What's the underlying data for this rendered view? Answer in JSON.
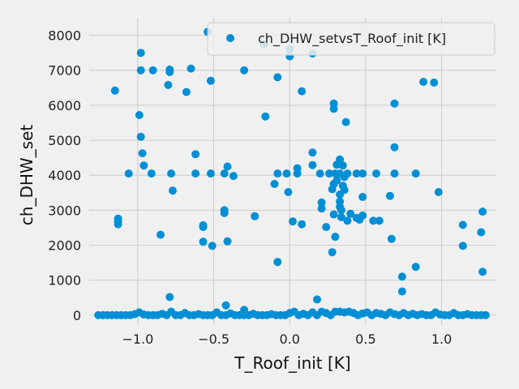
{
  "chart_data": {
    "type": "scatter",
    "title": "",
    "xlabel": "T_Roof_init [K]",
    "ylabel": "ch_DHW_set",
    "xlim": [
      -1.32,
      1.36
    ],
    "ylim": [
      -280,
      8500
    ],
    "xticks": [
      -1.0,
      -0.5,
      0.0,
      0.5,
      1.0
    ],
    "xtick_labels": [
      "−1.0",
      "−0.5",
      "0.0",
      "0.5",
      "1.0"
    ],
    "yticks": [
      0,
      1000,
      2000,
      3000,
      4000,
      5000,
      6000,
      7000,
      8000
    ],
    "ytick_labels": [
      "0",
      "1000",
      "2000",
      "3000",
      "4000",
      "5000",
      "6000",
      "7000",
      "8000"
    ],
    "grid": true,
    "legend_position": "top-right",
    "series": [
      {
        "name": "ch_DHW_setvsT_Roof_init [K]",
        "color": "#008fd5",
        "points": [
          [
            -0.54,
            8100
          ],
          [
            -0.17,
            7750
          ],
          [
            0.0,
            7600
          ],
          [
            0.15,
            7480
          ],
          [
            -0.98,
            7500
          ],
          [
            0.0,
            7400
          ],
          [
            -0.65,
            7050
          ],
          [
            -0.79,
            7020
          ],
          [
            -0.98,
            7000
          ],
          [
            -0.9,
            7000
          ],
          [
            -0.3,
            7000
          ],
          [
            -0.79,
            6950
          ],
          [
            -0.08,
            6800
          ],
          [
            -0.52,
            6700
          ],
          [
            0.88,
            6670
          ],
          [
            0.95,
            6650
          ],
          [
            -0.8,
            6580
          ],
          [
            -1.15,
            6420
          ],
          [
            0.08,
            6400
          ],
          [
            -0.68,
            6380
          ],
          [
            0.29,
            6050
          ],
          [
            0.69,
            6050
          ],
          [
            0.29,
            5900
          ],
          [
            -0.99,
            5720
          ],
          [
            -0.16,
            5680
          ],
          [
            0.37,
            5520
          ],
          [
            -0.98,
            5100
          ],
          [
            0.69,
            4800
          ],
          [
            0.15,
            4650
          ],
          [
            -0.97,
            4630
          ],
          [
            -0.62,
            4600
          ],
          [
            0.33,
            4450
          ],
          [
            0.31,
            4300
          ],
          [
            0.35,
            4280
          ],
          [
            -0.96,
            4280
          ],
          [
            -0.41,
            4250
          ],
          [
            0.15,
            4290
          ],
          [
            0.05,
            4200
          ],
          [
            -1.06,
            4050
          ],
          [
            -0.91,
            4050
          ],
          [
            -0.78,
            4050
          ],
          [
            -0.62,
            4050
          ],
          [
            -0.52,
            4050
          ],
          [
            -0.43,
            4050
          ],
          [
            -0.08,
            4050
          ],
          [
            -0.02,
            4050
          ],
          [
            0.05,
            4050
          ],
          [
            0.2,
            4050
          ],
          [
            0.26,
            4050
          ],
          [
            0.3,
            4050
          ],
          [
            0.33,
            4050
          ],
          [
            0.38,
            4050
          ],
          [
            0.44,
            4050
          ],
          [
            0.48,
            4050
          ],
          [
            0.57,
            4050
          ],
          [
            0.69,
            4050
          ],
          [
            0.83,
            4050
          ],
          [
            -0.37,
            3980
          ],
          [
            0.36,
            3950
          ],
          [
            0.31,
            3850
          ],
          [
            -0.1,
            3750
          ],
          [
            0.29,
            3750
          ],
          [
            0.35,
            3700
          ],
          [
            0.28,
            3600
          ],
          [
            0.36,
            3580
          ],
          [
            -0.77,
            3560
          ],
          [
            0.98,
            3520
          ],
          [
            -0.01,
            3520
          ],
          [
            0.33,
            3450
          ],
          [
            0.66,
            3410
          ],
          [
            0.48,
            3380
          ],
          [
            0.33,
            3250
          ],
          [
            0.21,
            3220
          ],
          [
            0.33,
            3100
          ],
          [
            0.34,
            3000
          ],
          [
            0.21,
            3050
          ],
          [
            -0.43,
            3000
          ],
          [
            1.27,
            2960
          ],
          [
            -0.43,
            2920
          ],
          [
            0.4,
            2900
          ],
          [
            0.29,
            2880
          ],
          [
            0.48,
            2850
          ],
          [
            -0.23,
            2830
          ],
          [
            0.34,
            2800
          ],
          [
            0.44,
            2780
          ],
          [
            0.46,
            2730
          ],
          [
            0.38,
            2700
          ],
          [
            -1.13,
            2760
          ],
          [
            0.55,
            2700
          ],
          [
            0.59,
            2700
          ],
          [
            0.02,
            2680
          ],
          [
            -1.13,
            2680
          ],
          [
            -1.13,
            2600
          ],
          [
            0.08,
            2600
          ],
          [
            1.14,
            2580
          ],
          [
            -0.57,
            2570
          ],
          [
            -0.57,
            2520
          ],
          [
            0.24,
            2520
          ],
          [
            1.26,
            2370
          ],
          [
            -0.85,
            2300
          ],
          [
            0.3,
            2240
          ],
          [
            0.67,
            2180
          ],
          [
            -0.41,
            2110
          ],
          [
            -0.57,
            2100
          ],
          [
            -0.51,
            1980
          ],
          [
            1.14,
            1980
          ],
          [
            0.28,
            1800
          ],
          [
            -0.08,
            1520
          ],
          [
            0.83,
            1380
          ],
          [
            1.27,
            1240
          ],
          [
            0.74,
            1100
          ],
          [
            0.74,
            680
          ],
          [
            -0.79,
            520
          ],
          [
            0.18,
            450
          ],
          [
            -0.42,
            280
          ],
          [
            -0.3,
            150
          ],
          [
            -1.26,
            0
          ],
          [
            -1.23,
            0
          ],
          [
            -1.2,
            0
          ],
          [
            -1.17,
            0
          ],
          [
            -1.14,
            0
          ],
          [
            -1.11,
            0
          ],
          [
            -1.08,
            0
          ],
          [
            -1.05,
            0
          ],
          [
            -1.02,
            30
          ],
          [
            -0.99,
            80
          ],
          [
            -0.96,
            20
          ],
          [
            -0.93,
            0
          ],
          [
            -0.9,
            0
          ],
          [
            -0.87,
            0
          ],
          [
            -0.84,
            40
          ],
          [
            -0.81,
            0
          ],
          [
            -0.78,
            100
          ],
          [
            -0.75,
            0
          ],
          [
            -0.72,
            0
          ],
          [
            -0.69,
            60
          ],
          [
            -0.66,
            0
          ],
          [
            -0.63,
            0
          ],
          [
            -0.6,
            30
          ],
          [
            -0.57,
            0
          ],
          [
            -0.54,
            0
          ],
          [
            -0.51,
            0
          ],
          [
            -0.48,
            80
          ],
          [
            -0.45,
            0
          ],
          [
            -0.42,
            0
          ],
          [
            -0.39,
            50
          ],
          [
            -0.36,
            0
          ],
          [
            -0.33,
            0
          ],
          [
            -0.3,
            0
          ],
          [
            -0.27,
            0
          ],
          [
            -0.24,
            40
          ],
          [
            -0.21,
            0
          ],
          [
            -0.18,
            0
          ],
          [
            -0.15,
            0
          ],
          [
            -0.12,
            30
          ],
          [
            -0.09,
            0
          ],
          [
            -0.06,
            0
          ],
          [
            -0.03,
            0
          ],
          [
            0.0,
            60
          ],
          [
            0.03,
            100
          ],
          [
            0.06,
            0
          ],
          [
            0.09,
            40
          ],
          [
            0.12,
            0
          ],
          [
            0.15,
            80
          ],
          [
            0.18,
            0
          ],
          [
            0.21,
            100
          ],
          [
            0.24,
            60
          ],
          [
            0.27,
            0
          ],
          [
            0.3,
            100
          ],
          [
            0.33,
            100
          ],
          [
            0.36,
            80
          ],
          [
            0.39,
            100
          ],
          [
            0.42,
            60
          ],
          [
            0.45,
            0
          ],
          [
            0.48,
            50
          ],
          [
            0.51,
            80
          ],
          [
            0.54,
            0
          ],
          [
            0.57,
            60
          ],
          [
            0.6,
            40
          ],
          [
            0.63,
            0
          ],
          [
            0.66,
            80
          ],
          [
            0.69,
            30
          ],
          [
            0.72,
            0
          ],
          [
            0.75,
            60
          ],
          [
            0.78,
            0
          ],
          [
            0.81,
            40
          ],
          [
            0.84,
            0
          ],
          [
            0.87,
            30
          ],
          [
            0.9,
            0
          ],
          [
            0.93,
            0
          ],
          [
            0.96,
            80
          ],
          [
            0.99,
            20
          ],
          [
            1.02,
            0
          ],
          [
            1.05,
            0
          ],
          [
            1.08,
            60
          ],
          [
            1.11,
            0
          ],
          [
            1.14,
            0
          ],
          [
            1.17,
            30
          ],
          [
            1.2,
            0
          ],
          [
            1.23,
            0
          ],
          [
            1.26,
            0
          ],
          [
            1.29,
            0
          ]
        ]
      }
    ]
  }
}
